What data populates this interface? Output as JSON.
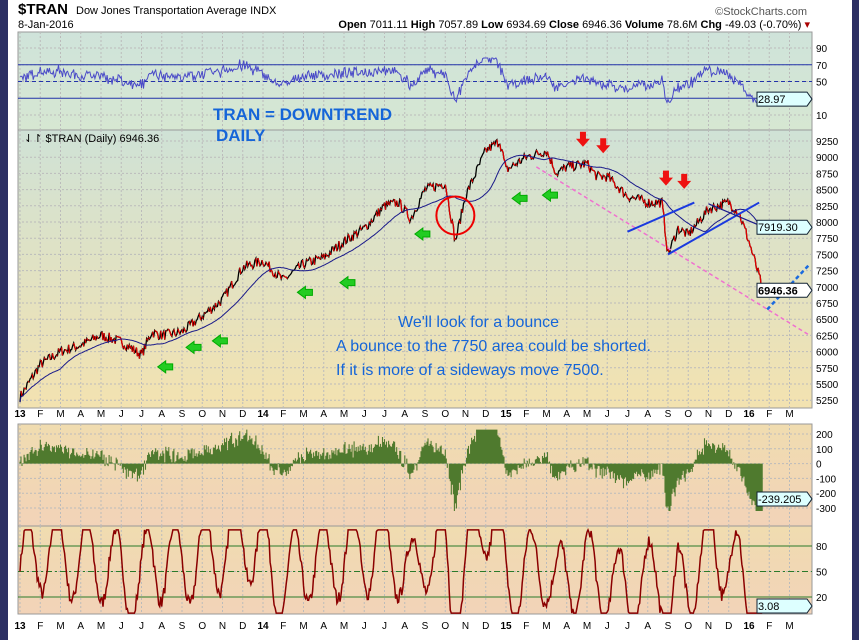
{
  "header": {
    "symbol": "$TRAN",
    "name": "Dow Jones Transportation Average INDX",
    "date": "8-Jan-2016",
    "brand": "©StockCharts.com",
    "open_label": "Open",
    "open": "7011.11",
    "high_label": "High",
    "high": "7057.89",
    "low_label": "Low",
    "low": "6934.69",
    "close_label": "Close",
    "close": "6946.36",
    "volume_label": "Volume",
    "volume": "78.6M",
    "chg_label": "Chg",
    "chg": "-49.03 (-0.70%)"
  },
  "chart_data": {
    "type": "line",
    "title": "$TRAN (Daily) 6946.36",
    "x_tick_labels": [
      "13",
      "F",
      "M",
      "A",
      "M",
      "J",
      "J",
      "A",
      "S",
      "O",
      "N",
      "D",
      "14",
      "F",
      "M",
      "A",
      "M",
      "J",
      "J",
      "A",
      "S",
      "O",
      "N",
      "D",
      "15",
      "F",
      "M",
      "A",
      "M",
      "J",
      "J",
      "A",
      "S",
      "O",
      "N",
      "D",
      "16",
      "F",
      "M"
    ],
    "price": {
      "ylim": [
        5100,
        9400
      ],
      "ticks": [
        9250,
        9000,
        8750,
        8500,
        8250,
        8000,
        7750,
        7500,
        7250,
        7000,
        6750,
        6500,
        6250,
        6000,
        5750,
        5500,
        5250
      ],
      "last_label": "6946.36",
      "ma_label": "7919.30",
      "waypoints_month_price": [
        [
          0,
          5300
        ],
        [
          1,
          5800
        ],
        [
          2,
          6000
        ],
        [
          3,
          6100
        ],
        [
          4,
          6250
        ],
        [
          5,
          6150
        ],
        [
          6,
          5950
        ],
        [
          6.5,
          6300
        ],
        [
          7,
          6250
        ],
        [
          8,
          6300
        ],
        [
          9,
          6550
        ],
        [
          10,
          6800
        ],
        [
          11,
          7300
        ],
        [
          12,
          7400
        ],
        [
          13,
          7100
        ],
        [
          14,
          7350
        ],
        [
          15,
          7450
        ],
        [
          16,
          7700
        ],
        [
          17,
          7900
        ],
        [
          18,
          8250
        ],
        [
          18.7,
          8300
        ],
        [
          19.3,
          8050
        ],
        [
          20,
          8500
        ],
        [
          21,
          8600
        ],
        [
          21.5,
          7700
        ],
        [
          22,
          8400
        ],
        [
          23,
          9100
        ],
        [
          23.7,
          9250
        ],
        [
          24,
          8800
        ],
        [
          25,
          9000
        ],
        [
          26,
          9100
        ],
        [
          26.5,
          8750
        ],
        [
          27,
          8850
        ],
        [
          28,
          8900
        ],
        [
          28.5,
          8700
        ],
        [
          29,
          8700
        ],
        [
          30,
          8400
        ],
        [
          31,
          8300
        ],
        [
          31.7,
          8300
        ],
        [
          32,
          7500
        ],
        [
          32.5,
          7900
        ],
        [
          33,
          7800
        ],
        [
          34,
          8200
        ],
        [
          35,
          8300
        ],
        [
          35.5,
          8150
        ],
        [
          36,
          7700
        ],
        [
          36.7,
          6946
        ]
      ]
    },
    "rsi": {
      "ticks": [
        90,
        70,
        50,
        10
      ],
      "last_label": "28.97"
    },
    "cci": {
      "ticks": [
        200,
        100,
        0,
        -100,
        -200,
        -300
      ],
      "last_label": "-239.205"
    },
    "stoch": {
      "ticks": [
        80,
        50,
        20
      ],
      "last_label": "3.08"
    },
    "annotations": {
      "title1": "TRAN =  DOWNTREND",
      "title2": "DAILY",
      "note1": "We'll look for a bounce",
      "note2": "A bounce to the 7750 area could be shorted.",
      "note3": "If it is more of a sideways move 7500.",
      "green_arrows": [
        [
          6.8,
          5950
        ],
        [
          8.2,
          6250
        ],
        [
          9.5,
          6350
        ],
        [
          13.7,
          7100
        ],
        [
          15.8,
          7250
        ],
        [
          19.5,
          8000
        ],
        [
          24.3,
          8550
        ],
        [
          25.8,
          8600
        ]
      ],
      "red_arrows": [
        [
          27.8,
          9100
        ],
        [
          28.8,
          9000
        ],
        [
          31.9,
          8500
        ],
        [
          32.8,
          8450
        ]
      ],
      "circle": [
        21.5,
        8100
      ]
    },
    "colors": {
      "price_up": "#000000",
      "price_down": "#e00000",
      "ma": "#1a1a8a",
      "rsi": "#4a4ac8",
      "cci": "#4f7a2e",
      "stoch": "#8b0000",
      "annot": "#1565d8"
    }
  }
}
